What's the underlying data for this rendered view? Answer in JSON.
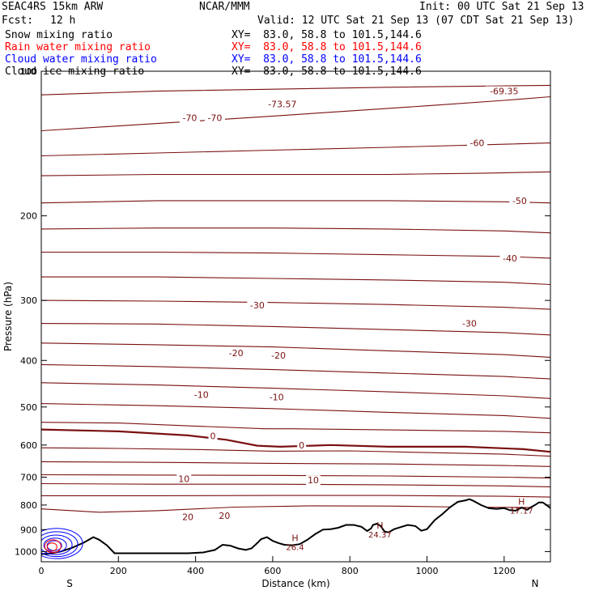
{
  "header": {
    "model": "SEAC4RS 15km ARW",
    "center": "NCAR/MMM",
    "init": "Init: 00 UTC Sat 21 Sep 13",
    "fcst_label": "Fcst:",
    "fcst_value": "12 h",
    "valid": "Valid: 12 UTC Sat 21 Sep 13 (07 CDT Sat 21 Sep 13)"
  },
  "fields": [
    {
      "name": "Snow mixing ratio",
      "xy": "XY=  83.0, 58.8 to 101.5,144.6",
      "color": "#000000"
    },
    {
      "name": "Rain water mixing ratio",
      "xy": "XY=  83.0, 58.8 to 101.5,144.6",
      "color": "#ff0000"
    },
    {
      "name": "Cloud water mixing ratio",
      "xy": "XY=  83.0, 58.8 to 101.5,144.6",
      "color": "#0000ff"
    },
    {
      "name": "Cloud ice mixing ratio",
      "xy": "XY=  83.0, 58.8 to 101.5,144.6",
      "color": "#000000"
    }
  ],
  "colors": {
    "isotherm": "#7a1010",
    "terrain": "#000000",
    "cloud_water": "#0000ff",
    "rain": "#ff0000",
    "frame": "#000000"
  },
  "chart_data": {
    "type": "line",
    "title": "",
    "xlabel": "Distance (km)",
    "ylabel": "Pressure (hPa)",
    "xlim": [
      0,
      1320
    ],
    "ylim": [
      1050,
      100
    ],
    "y_scale": "log",
    "grid": false,
    "x_ticks": [
      0,
      200,
      400,
      600,
      800,
      1000,
      1200
    ],
    "y_ticks": [
      100,
      200,
      300,
      400,
      500,
      600,
      700,
      800,
      900,
      1000
    ],
    "x_end_labels": {
      "left": "S",
      "right": "N"
    },
    "isotherms": [
      {
        "x": [
          0,
          300,
          600,
          900,
          1320
        ],
        "y": [
          112,
          110,
          109,
          108,
          107
        ]
      },
      {
        "x": [
          0,
          200,
          400,
          600,
          800,
          1000,
          1200,
          1320
        ],
        "y": [
          133,
          130,
          127,
          124,
          121,
          118,
          115,
          113
        ]
      },
      {
        "x": [
          0,
          300,
          600,
          900,
          1320
        ],
        "y": [
          150,
          148,
          146,
          144,
          141
        ]
      },
      {
        "x": [
          0,
          300,
          600,
          900,
          1150,
          1320
        ],
        "y": [
          165,
          164,
          164,
          164,
          163,
          162
        ]
      },
      {
        "x": [
          0,
          300,
          600,
          900,
          1200,
          1320
        ],
        "y": [
          188,
          186,
          186,
          186,
          187,
          188
        ]
      },
      {
        "x": [
          0,
          300,
          600,
          900,
          1200,
          1320
        ],
        "y": [
          213,
          212,
          212,
          213,
          215,
          217
        ]
      },
      {
        "x": [
          0,
          300,
          600,
          900,
          1200,
          1320
        ],
        "y": [
          238,
          238,
          239,
          241,
          243,
          245
        ]
      },
      {
        "x": [
          0,
          300,
          600,
          900,
          1200,
          1320
        ],
        "y": [
          268,
          268,
          270,
          272,
          275,
          278
        ]
      },
      {
        "x": [
          0,
          300,
          600,
          900,
          1200,
          1320
        ],
        "y": [
          300,
          301,
          303,
          306,
          310,
          313
        ]
      },
      {
        "x": [
          0,
          300,
          600,
          900,
          1200,
          1320
        ],
        "y": [
          335,
          336,
          340,
          345,
          350,
          354
        ]
      },
      {
        "x": [
          0,
          300,
          600,
          900,
          1200,
          1320
        ],
        "y": [
          368,
          371,
          375,
          382,
          389,
          394
        ]
      },
      {
        "x": [
          0,
          300,
          600,
          900,
          1200,
          1320
        ],
        "y": [
          408,
          412,
          418,
          425,
          432,
          437
        ]
      },
      {
        "x": [
          0,
          300,
          600,
          900,
          1200,
          1320
        ],
        "y": [
          445,
          450,
          457,
          465,
          474,
          480
        ]
      },
      {
        "x": [
          0,
          300,
          600,
          900,
          1200,
          1320
        ],
        "y": [
          492,
          497,
          504,
          513,
          521,
          528
        ]
      },
      {
        "x": [
          0,
          200,
          400,
          580,
          650,
          900,
          1200,
          1320
        ],
        "y": [
          538,
          540,
          548,
          555,
          555,
          558,
          562,
          566
        ]
      },
      {
        "x": [
          0,
          200,
          380,
          480,
          560,
          620,
          750,
          900,
          1100,
          1250,
          1320
        ],
        "y": [
          557,
          562,
          573,
          585,
          602,
          605,
          600,
          605,
          605,
          612,
          620
        ]
      },
      {
        "x": [
          0,
          200,
          400,
          600,
          800,
          1000,
          1200,
          1320
        ],
        "y": [
          608,
          610,
          613,
          618,
          617,
          622,
          627,
          633
        ]
      },
      {
        "x": [
          0,
          300,
          600,
          900,
          1200,
          1320
        ],
        "y": [
          650,
          652,
          655,
          657,
          662,
          665
        ]
      },
      {
        "x": [
          0,
          300,
          600,
          900,
          1200,
          1320
        ],
        "y": [
          692,
          693,
          694,
          696,
          700,
          703
        ]
      },
      {
        "x": [
          0,
          300,
          600,
          900,
          1200,
          1320
        ],
        "y": [
          722,
          724,
          724,
          726,
          730,
          733
        ]
      },
      {
        "x": [
          0,
          300,
          600,
          900,
          1200,
          1320
        ],
        "y": [
          765,
          765,
          764,
          764,
          767,
          770
        ]
      },
      {
        "x": [
          0,
          150,
          300,
          500,
          700,
          900,
          1100,
          1320
        ],
        "y": [
          815,
          828,
          822,
          808,
          803,
          804,
          808,
          810
        ]
      }
    ],
    "isotherm_labels": [
      {
        "x": 385,
        "y": 125,
        "text": "-70"
      },
      {
        "x": 450,
        "y": 125,
        "text": "-70"
      },
      {
        "x": 625,
        "y": 117,
        "text": "-73.57"
      },
      {
        "x": 1200,
        "y": 110,
        "text": "-69.35"
      },
      {
        "x": 1130,
        "y": 141,
        "text": "-60"
      },
      {
        "x": 1240,
        "y": 186,
        "text": "-50"
      },
      {
        "x": 1215,
        "y": 245,
        "text": "-40"
      },
      {
        "x": 560,
        "y": 307,
        "text": "-30"
      },
      {
        "x": 1110,
        "y": 335,
        "text": "-30"
      },
      {
        "x": 505,
        "y": 386,
        "text": "-20"
      },
      {
        "x": 615,
        "y": 390,
        "text": "-20"
      },
      {
        "x": 415,
        "y": 471,
        "text": "-10"
      },
      {
        "x": 610,
        "y": 477,
        "text": "-10"
      },
      {
        "x": 445,
        "y": 574,
        "text": "0"
      },
      {
        "x": 675,
        "y": 600,
        "text": "0"
      },
      {
        "x": 370,
        "y": 705,
        "text": "10"
      },
      {
        "x": 705,
        "y": 710,
        "text": "10"
      },
      {
        "x": 380,
        "y": 847,
        "text": "20"
      },
      {
        "x": 475,
        "y": 842,
        "text": "20"
      }
    ],
    "terrain": {
      "x": [
        0,
        20,
        50,
        80,
        110,
        135,
        150,
        170,
        190,
        220,
        260,
        300,
        340,
        380,
        420,
        450,
        470,
        490,
        510,
        530,
        545,
        560,
        570,
        585,
        600,
        615,
        630,
        650,
        670,
        690,
        710,
        730,
        750,
        770,
        790,
        810,
        830,
        845,
        855,
        860,
        870,
        880,
        890,
        900,
        915,
        930,
        950,
        970,
        985,
        1000,
        1020,
        1040,
        1060,
        1080,
        1100,
        1110,
        1120,
        1140,
        1160,
        1180,
        1200,
        1215,
        1230,
        1245,
        1260,
        1270,
        1280,
        1290,
        1300,
        1310,
        1320
      ],
      "y": [
        1012,
        1010,
        1000,
        982,
        958,
        933,
        945,
        970,
        1008,
        1008,
        1008,
        1008,
        1008,
        1008,
        1004,
        992,
        968,
        972,
        985,
        992,
        985,
        960,
        942,
        933,
        950,
        960,
        968,
        970,
        965,
        945,
        920,
        900,
        898,
        892,
        880,
        880,
        888,
        906,
        895,
        880,
        875,
        885,
        908,
        912,
        898,
        890,
        880,
        885,
        905,
        898,
        860,
        835,
        808,
        788,
        782,
        778,
        784,
        800,
        812,
        815,
        812,
        820,
        822,
        810,
        818,
        808,
        800,
        790,
        790,
        800,
        812
      ]
    },
    "h_markers": [
      {
        "x": 658,
        "y": 952,
        "label": "H",
        "value": "26.4"
      },
      {
        "x": 878,
        "y": 895,
        "label": "H",
        "value": "24.37"
      },
      {
        "x": 1245,
        "y": 798,
        "label": "H",
        "value": "17.17"
      }
    ]
  }
}
